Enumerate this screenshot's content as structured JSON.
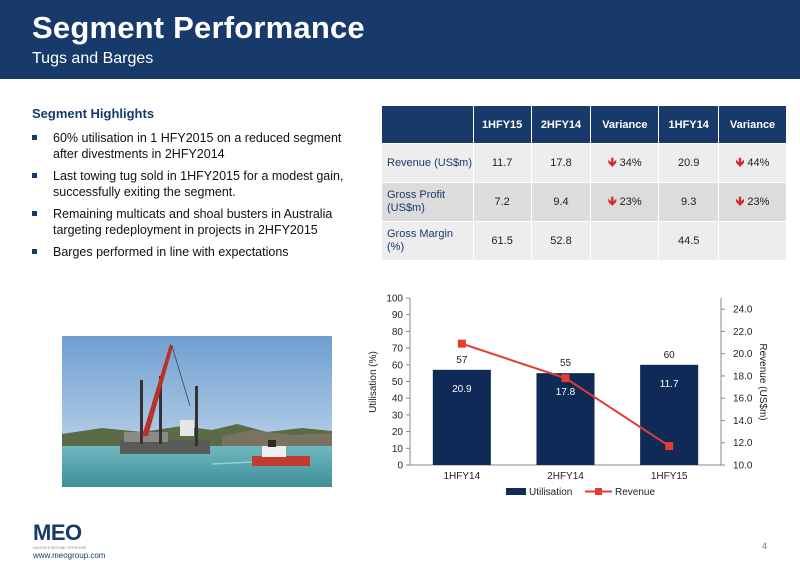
{
  "header": {
    "title": "Segment Performance",
    "subtitle": "Tugs and Barges"
  },
  "highlights": {
    "title": "Segment Highlights",
    "items": [
      "60% utilisation in 1 HFY2015 on a reduced segment after divestments in 2HFY2014",
      "Last towing tug sold in 1HFY2015 for a modest gain, successfully exiting the segment.",
      "Remaining multicats and shoal busters in Australia targeting redeployment in projects in 2HFY2015",
      "Barges performed in line with expectations"
    ]
  },
  "table": {
    "headers": [
      "",
      "1HFY15",
      "2HFY14",
      "Variance",
      "1HFY14",
      "Variance"
    ],
    "rows": [
      {
        "label": "Revenue (US$m)",
        "c1": "11.7",
        "c2": "17.8",
        "v1": "34%",
        "c3": "20.9",
        "v2": "44%"
      },
      {
        "label": "Gross Profit (US$m)",
        "c1": "7.2",
        "c2": "9.4",
        "v1": "23%",
        "c3": "9.3",
        "v2": "23%"
      },
      {
        "label": "Gross Margin (%)",
        "c1": "61.5",
        "c2": "52.8",
        "v1": "",
        "c3": "44.5",
        "v2": ""
      }
    ]
  },
  "colors": {
    "navy": "#173a6b",
    "bar": "#0f2a57",
    "line": "#e23c33",
    "down_arrow": "#d12a2a"
  },
  "chart_data": {
    "type": "bar",
    "categories": [
      "1HFY14",
      "2HFY14",
      "1HFY15"
    ],
    "series": [
      {
        "name": "Utilisation",
        "type": "bar",
        "axis": "left",
        "values": [
          57,
          55,
          60
        ],
        "inner_labels": [
          "20.9",
          "17.8",
          "11.7"
        ]
      },
      {
        "name": "Revenue",
        "type": "line",
        "axis": "right",
        "values": [
          20.9,
          17.8,
          11.7
        ]
      }
    ],
    "ylabel": "Utilisation (%)",
    "y2label": "Revenue (US$m)",
    "ylim": [
      0,
      100
    ],
    "y2lim": [
      10.0,
      25.0
    ],
    "yticks": [
      "0",
      "10",
      "20",
      "30",
      "40",
      "50",
      "60",
      "70",
      "80",
      "90",
      "100"
    ],
    "y2ticks": [
      "10.0",
      "12.0",
      "14.0",
      "16.0",
      "18.0",
      "20.0",
      "22.0",
      "24.0"
    ],
    "legend": "bottom",
    "grid": false
  },
  "footer": {
    "logo_text": "MEO",
    "logo_tagline": "NAVIGATE BEYOND OFFSHORE",
    "url": "www.meogroup.com",
    "page": "4"
  }
}
